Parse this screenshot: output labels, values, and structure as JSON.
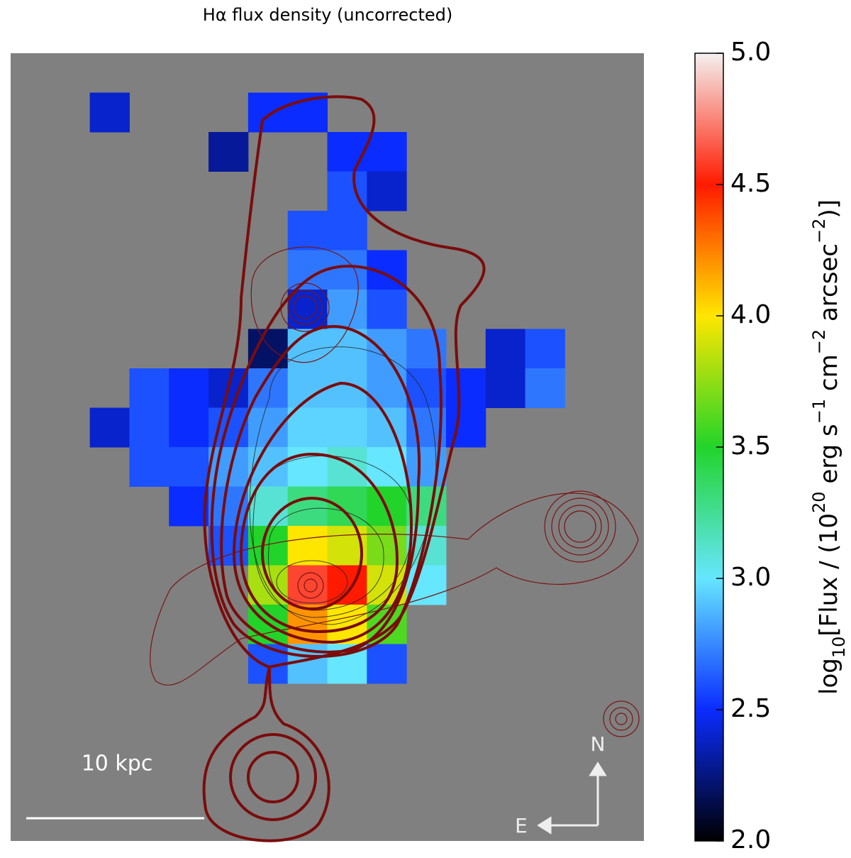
{
  "chart_data": {
    "type": "heatmap",
    "title": "Hα flux density (uncorrected)",
    "z": [
      [
        null,
        null,
        null,
        null,
        null,
        null,
        null,
        null,
        null,
        null,
        null,
        null,
        null,
        null,
        null,
        null
      ],
      [
        null,
        null,
        2.4,
        null,
        null,
        null,
        2.5,
        2.5,
        null,
        null,
        null,
        null,
        null,
        null,
        null,
        null
      ],
      [
        null,
        null,
        null,
        null,
        null,
        2.3,
        null,
        null,
        2.5,
        2.5,
        null,
        null,
        null,
        null,
        null,
        null
      ],
      [
        null,
        null,
        null,
        null,
        null,
        null,
        null,
        null,
        2.6,
        2.4,
        null,
        null,
        null,
        null,
        null,
        null
      ],
      [
        null,
        null,
        null,
        null,
        null,
        null,
        null,
        2.6,
        2.6,
        null,
        null,
        null,
        null,
        null,
        null,
        null
      ],
      [
        null,
        null,
        null,
        null,
        null,
        null,
        null,
        2.7,
        2.7,
        2.5,
        null,
        null,
        null,
        null,
        null,
        null
      ],
      [
        null,
        null,
        null,
        null,
        null,
        null,
        null,
        2.4,
        2.8,
        2.6,
        null,
        null,
        null,
        null,
        null,
        null
      ],
      [
        null,
        null,
        null,
        null,
        null,
        null,
        2.2,
        2.9,
        2.9,
        2.8,
        2.7,
        null,
        2.4,
        2.6,
        null,
        null
      ],
      [
        null,
        null,
        null,
        2.6,
        2.5,
        2.4,
        2.7,
        2.9,
        2.9,
        2.8,
        2.6,
        2.5,
        2.4,
        2.7,
        null,
        null
      ],
      [
        null,
        null,
        2.4,
        2.6,
        2.5,
        2.6,
        2.8,
        2.95,
        2.95,
        2.9,
        2.7,
        2.5,
        null,
        null,
        null,
        null
      ],
      [
        null,
        null,
        null,
        2.6,
        2.6,
        2.8,
        2.9,
        3.0,
        3.1,
        3.0,
        2.8,
        null,
        null,
        null,
        null,
        null
      ],
      [
        null,
        null,
        null,
        null,
        2.5,
        2.7,
        3.1,
        3.3,
        3.4,
        3.5,
        3.3,
        null,
        null,
        null,
        null,
        null
      ],
      [
        null,
        null,
        null,
        null,
        null,
        2.6,
        3.5,
        4.0,
        3.9,
        3.7,
        3.1,
        null,
        null,
        null,
        null,
        null
      ],
      [
        null,
        null,
        null,
        null,
        null,
        null,
        3.8,
        4.6,
        4.5,
        3.9,
        3.0,
        null,
        null,
        null,
        null,
        null
      ],
      [
        null,
        null,
        null,
        null,
        null,
        null,
        3.5,
        4.2,
        4.0,
        3.6,
        null,
        null,
        null,
        null,
        null,
        null
      ],
      [
        null,
        null,
        null,
        null,
        null,
        null,
        2.6,
        2.9,
        3.0,
        2.6,
        null,
        null,
        null,
        null,
        null,
        null
      ],
      [
        null,
        null,
        null,
        null,
        null,
        null,
        null,
        null,
        null,
        null,
        null,
        null,
        null,
        null,
        null,
        null
      ],
      [
        null,
        null,
        null,
        null,
        null,
        null,
        null,
        null,
        null,
        null,
        null,
        null,
        null,
        null,
        null,
        null
      ],
      [
        null,
        null,
        null,
        null,
        null,
        null,
        null,
        null,
        null,
        null,
        null,
        null,
        null,
        null,
        null,
        null
      ],
      [
        null,
        null,
        null,
        null,
        null,
        null,
        null,
        null,
        null,
        null,
        null,
        null,
        null,
        null,
        null,
        null
      ]
    ],
    "colormap": [
      "#000000",
      "#0a2cff",
      "#66e6ff",
      "#22d42a",
      "#ffe600",
      "#ff1a00",
      "#f4f0f0"
    ],
    "clim": [
      2,
      5
    ],
    "colorbar_ticks": [
      {
        "value": 2,
        "label": "2.0"
      },
      {
        "value": 2.5,
        "label": "2.5"
      },
      {
        "value": 3,
        "label": "3.0"
      },
      {
        "value": 3.5,
        "label": "3.5"
      },
      {
        "value": 4,
        "label": "4.0"
      },
      {
        "value": 4.5,
        "label": "4.5"
      },
      {
        "value": 5,
        "label": "5.0"
      }
    ],
    "colorbar_label": [
      "log",
      "10",
      "[Flux / (10",
      "20",
      " erg s",
      "−1",
      " cm",
      "−2",
      " arcsec",
      "−2",
      ")]"
    ],
    "scale_bar_label": "10 kpc",
    "compass": {
      "north": "N",
      "east": "E"
    }
  }
}
